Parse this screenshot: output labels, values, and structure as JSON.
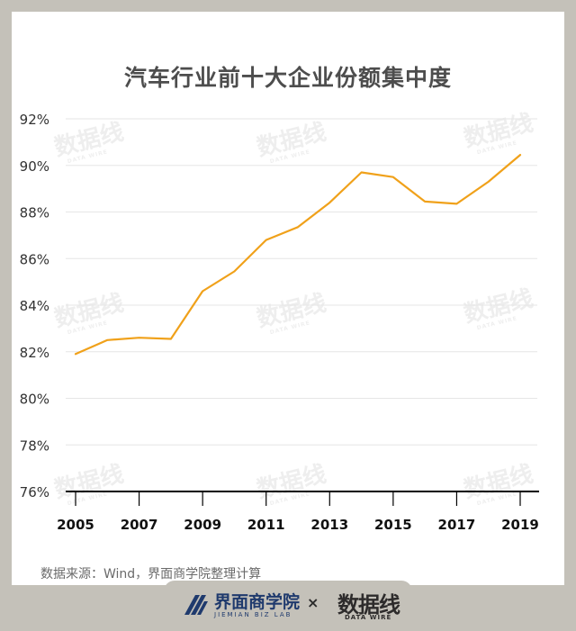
{
  "title": "汽车行业前十大企业份额集中度",
  "source": "数据来源：Wind，界面商学院整理计算",
  "footer": {
    "brand1_name": "界面商学院",
    "brand1_sub": "JIEMIAN BIZ LAB",
    "separator": "×",
    "brand2_name": "数据线",
    "brand2_sub": "DATA WIRE"
  },
  "watermark": {
    "text": "数据线",
    "sub": "DATA WIRE"
  },
  "colors": {
    "line": "#f0a11a",
    "background": "#c4c1b9",
    "card": "#ffffff",
    "grid": "#e6e6e6",
    "axis": "#000000"
  },
  "chart_data": {
    "type": "line",
    "title": "汽车行业前十大企业份额集中度",
    "xlabel": "",
    "ylabel": "",
    "x": [
      2005,
      2006,
      2007,
      2008,
      2009,
      2010,
      2011,
      2012,
      2013,
      2014,
      2015,
      2016,
      2017,
      2018,
      2019
    ],
    "series": [
      {
        "values": [
          81.9,
          82.5,
          82.6,
          82.55,
          84.6,
          85.45,
          86.8,
          87.35,
          88.4,
          89.7,
          89.5,
          88.45,
          88.35,
          89.3,
          90.45
        ]
      }
    ],
    "ylim": [
      76,
      92
    ],
    "yticks": [
      76,
      78,
      80,
      82,
      84,
      86,
      88,
      90,
      92
    ],
    "ytick_labels": [
      "76%",
      "78%",
      "80%",
      "82%",
      "84%",
      "86%",
      "88%",
      "90%",
      "92%"
    ],
    "xtick_labels": [
      "2005",
      "2007",
      "2009",
      "2011",
      "2013",
      "2015",
      "2017",
      "2019"
    ],
    "grid": true,
    "legend": "none"
  }
}
